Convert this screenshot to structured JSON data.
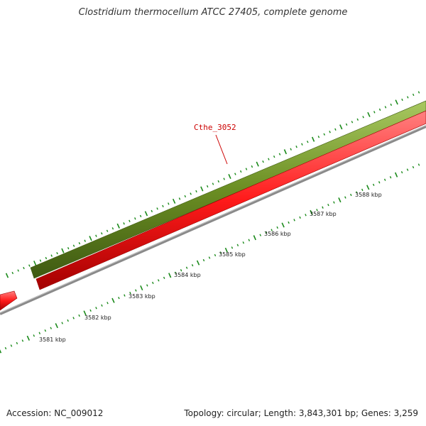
{
  "title": "Clostridium thermocellum ATCC 27405, complete genome",
  "accession_text": "Accession: NC_009012",
  "summary_text": "Topology: circular; Length: 3,843,301 bp; Genes: 3,259",
  "gene_label": "Cthe_3052",
  "scale_labels": [
    "3581 kbp",
    "3582 kbp",
    "3583 kbp",
    "3584 kbp",
    "3585 kbp",
    "3586 kbp",
    "3587 kbp",
    "3588 kbp"
  ],
  "colors": {
    "forward_genes": "#6b8e23",
    "reverse_genes": "#ff1a1a",
    "backbone": "#7f7f7f",
    "ticks": "#1a8a1a",
    "gene_label": "#cc0000",
    "scale_text": "#222222"
  }
}
